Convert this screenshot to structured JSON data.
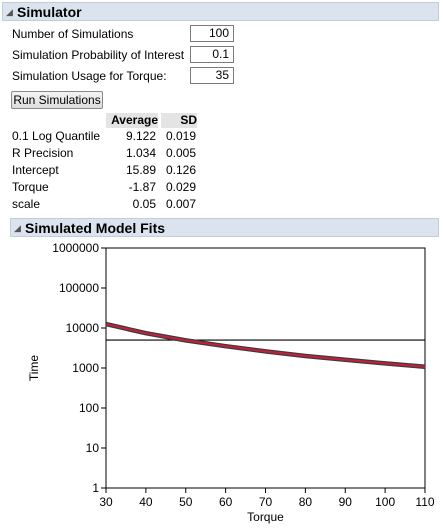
{
  "simulator": {
    "title": "Simulator",
    "num_sims_label": "Number of Simulations",
    "num_sims_value": "100",
    "prob_label": "Simulation Probability of Interest",
    "prob_value": "0.1",
    "usage_label": "Simulation Usage for Torque:",
    "usage_value": "35",
    "run_button": "Run Simulations",
    "table": {
      "headers": [
        "Average",
        "SD"
      ],
      "rows": [
        {
          "label": "0.1 Log Quantile",
          "avg": "9.122",
          "sd": "0.019"
        },
        {
          "label": "R Precision",
          "avg": "1.034",
          "sd": "0.005"
        },
        {
          "label": "Intercept",
          "avg": "15.89",
          "sd": "0.126"
        },
        {
          "label": "Torque",
          "avg": "-1.87",
          "sd": "0.029"
        },
        {
          "label": "scale",
          "avg": "0.05",
          "sd": "0.007"
        }
      ]
    }
  },
  "fits": {
    "title": "Simulated Model Fits"
  },
  "colors": {
    "header_bg": "#dbe3ee",
    "curve": "#c0213a",
    "reference_line": "#000000"
  },
  "chart_data": {
    "type": "line",
    "xlabel": "Torque",
    "ylabel": "Time",
    "xlim": [
      30,
      110
    ],
    "ylim": [
      1,
      1000000
    ],
    "y_scale": "log",
    "x_ticks": [
      30,
      40,
      50,
      60,
      70,
      80,
      90,
      100,
      110
    ],
    "y_ticks": [
      1,
      10,
      100,
      1000,
      10000,
      100000,
      1000000
    ],
    "x_tick_labels": [
      "30",
      "40",
      "50",
      "60",
      "70",
      "80",
      "90",
      "100",
      "110"
    ],
    "y_tick_labels": [
      "1",
      "10",
      "100",
      "1000",
      "10000",
      "100000",
      "1000000"
    ],
    "reference_line_y": 5000,
    "series": [
      {
        "x": [
          30,
          40,
          50,
          60,
          70,
          80,
          90,
          100,
          110
        ],
        "y": [
          12500,
          7400,
          4900,
          3500,
          2600,
          2000,
          1600,
          1300,
          1070
        ]
      }
    ]
  }
}
